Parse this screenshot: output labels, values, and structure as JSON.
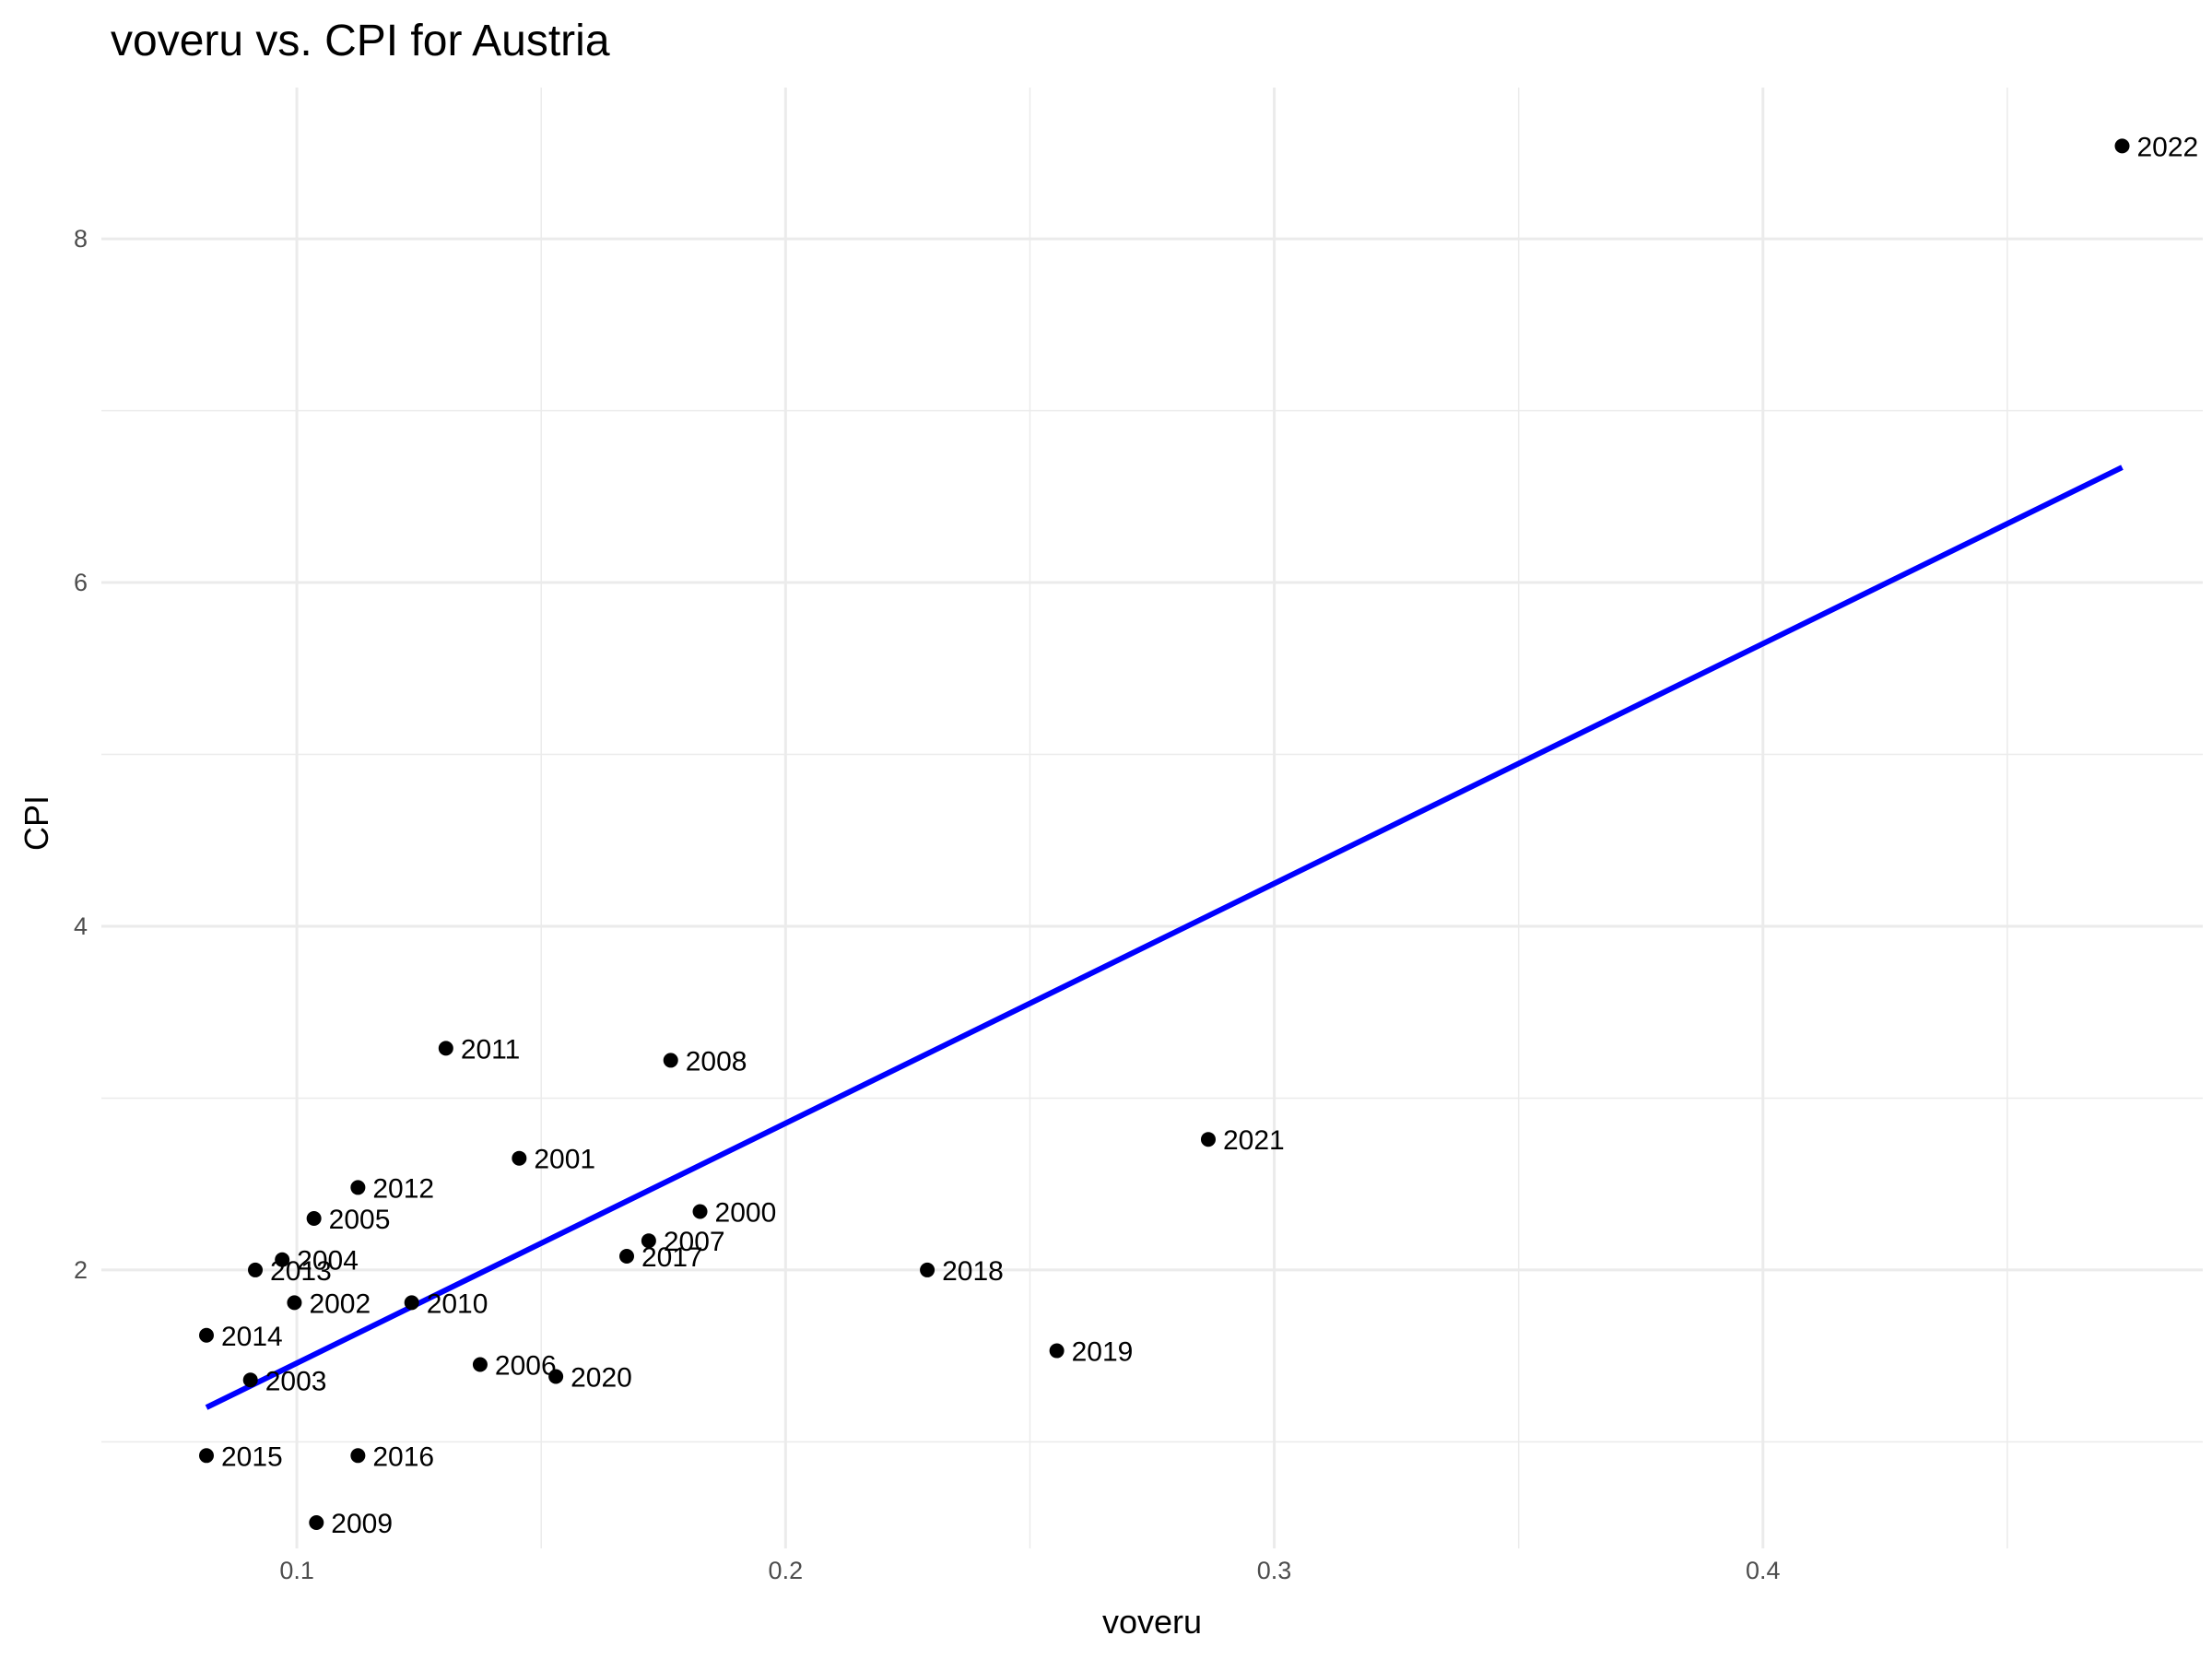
{
  "chart_data": {
    "type": "scatter",
    "title": "voveru vs. CPI for Austria",
    "xlabel": "voveru",
    "ylabel": "CPI",
    "xlim": [
      0.06,
      0.49
    ],
    "ylim": [
      0.38,
      8.88
    ],
    "x_ticks": [
      {
        "value": 0.1,
        "label": "0.1"
      },
      {
        "value": 0.2,
        "label": "0.2"
      },
      {
        "value": 0.3,
        "label": "0.3"
      },
      {
        "value": 0.4,
        "label": "0.4"
      }
    ],
    "y_ticks": [
      {
        "value": 2,
        "label": "2"
      },
      {
        "value": 4,
        "label": "4"
      },
      {
        "value": 6,
        "label": "6"
      },
      {
        "value": 8,
        "label": "8"
      }
    ],
    "grid": true,
    "points": [
      {
        "label": "2000",
        "x": 0.1825,
        "y": 2.34
      },
      {
        "label": "2001",
        "x": 0.1455,
        "y": 2.65
      },
      {
        "label": "2002",
        "x": 0.0995,
        "y": 1.81
      },
      {
        "label": "2003",
        "x": 0.0905,
        "y": 1.36
      },
      {
        "label": "2004",
        "x": 0.097,
        "y": 2.06
      },
      {
        "label": "2005",
        "x": 0.1035,
        "y": 2.3
      },
      {
        "label": "2006",
        "x": 0.1375,
        "y": 1.45
      },
      {
        "label": "2007",
        "x": 0.172,
        "y": 2.17
      },
      {
        "label": "2008",
        "x": 0.1765,
        "y": 3.22
      },
      {
        "label": "2009",
        "x": 0.104,
        "y": 0.53
      },
      {
        "label": "2010",
        "x": 0.1235,
        "y": 1.81
      },
      {
        "label": "2011",
        "x": 0.1305,
        "y": 3.29
      },
      {
        "label": "2012",
        "x": 0.1125,
        "y": 2.48
      },
      {
        "label": "2013",
        "x": 0.0915,
        "y": 2.0
      },
      {
        "label": "2014",
        "x": 0.0815,
        "y": 1.62
      },
      {
        "label": "2015",
        "x": 0.0815,
        "y": 0.92
      },
      {
        "label": "2016",
        "x": 0.1125,
        "y": 0.92
      },
      {
        "label": "2017",
        "x": 0.1675,
        "y": 2.08
      },
      {
        "label": "2018",
        "x": 0.229,
        "y": 2.0
      },
      {
        "label": "2019",
        "x": 0.2555,
        "y": 1.53
      },
      {
        "label": "2020",
        "x": 0.153,
        "y": 1.38
      },
      {
        "label": "2021",
        "x": 0.2865,
        "y": 2.76
      },
      {
        "label": "2022",
        "x": 0.4735,
        "y": 8.54
      }
    ],
    "trend_line": {
      "color": "#0000ff",
      "x": [
        0.0815,
        0.4735
      ],
      "y": [
        1.2,
        6.67
      ]
    },
    "point_color": "#000000"
  }
}
